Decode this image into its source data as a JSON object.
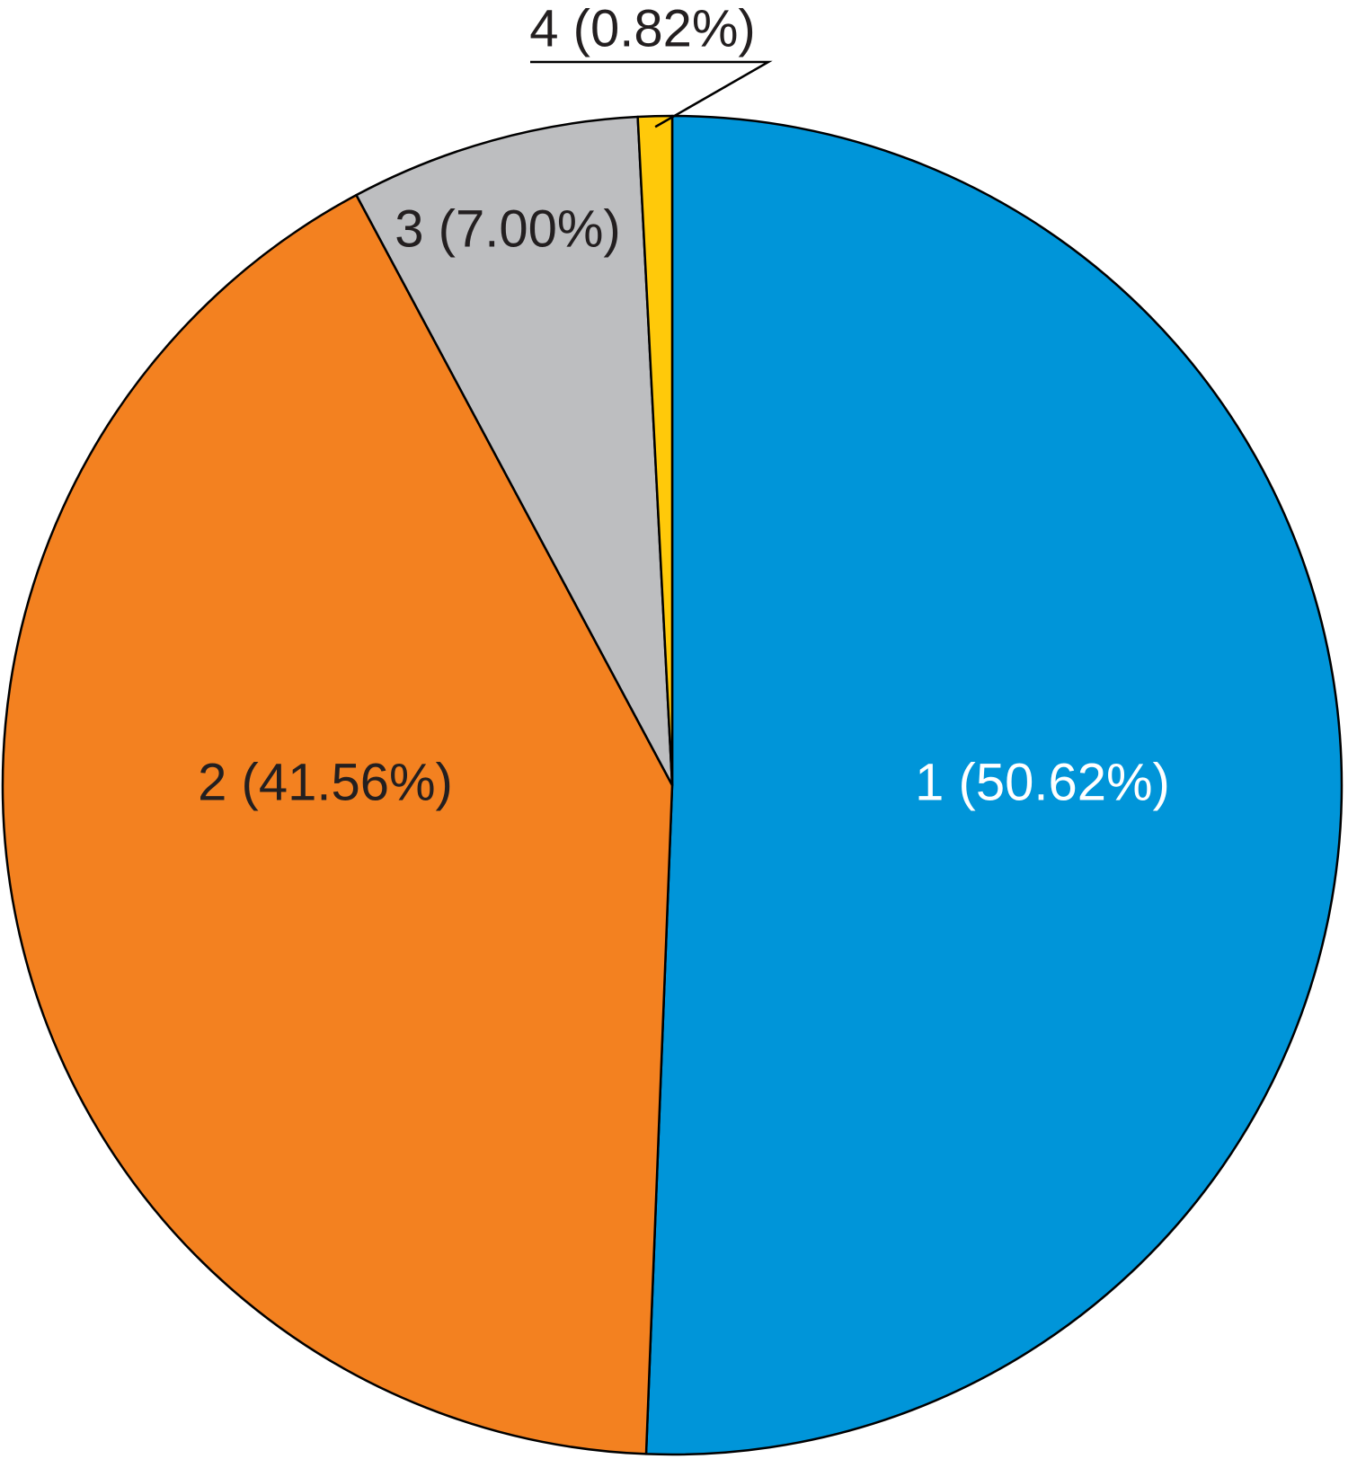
{
  "chart_data": {
    "type": "pie",
    "values": [
      50.62,
      41.56,
      7.0,
      0.82
    ],
    "value_labels": [
      "1 (50.62%)",
      "2 (41.56%)",
      "3 (7.00%)",
      "4 (0.82%)"
    ],
    "colors": [
      "#0095d9",
      "#f38120",
      "#bdbec0",
      "#ffc90a"
    ]
  }
}
